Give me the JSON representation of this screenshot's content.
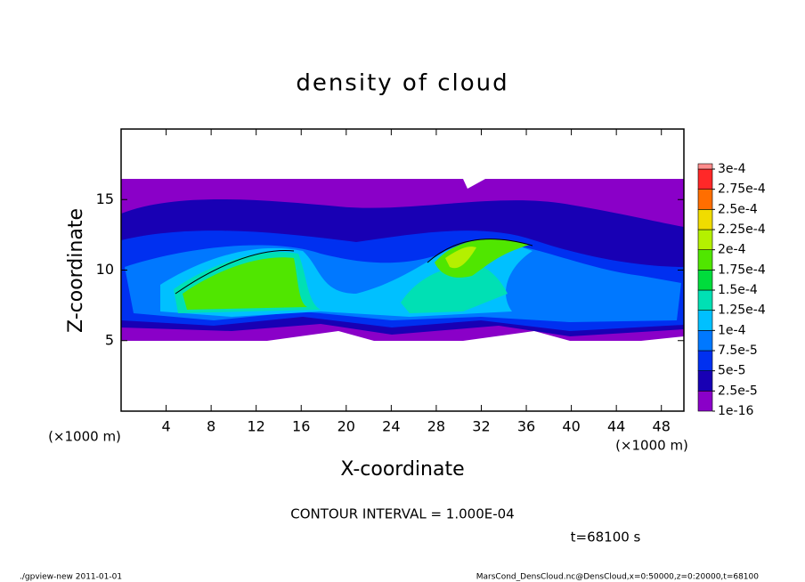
{
  "chart_data": {
    "type": "contour",
    "title": "density of cloud",
    "xlabel": "X-coordinate",
    "ylabel": "Z-coordinate",
    "xunit": "(×1000 m)",
    "yunit": "(×1000 m)",
    "xlim": [
      0,
      50
    ],
    "ylim": [
      0,
      20
    ],
    "xticks": [
      4,
      8,
      12,
      16,
      20,
      24,
      28,
      32,
      36,
      40,
      44,
      48
    ],
    "yticks": [
      5,
      10,
      15
    ],
    "levels": [
      {
        "value": 1e-16,
        "label": "1e-16"
      },
      {
        "value": 2.5e-05,
        "label": "2.5e-5"
      },
      {
        "value": 5e-05,
        "label": "5e-5"
      },
      {
        "value": 7.5e-05,
        "label": "7.5e-5"
      },
      {
        "value": 0.0001,
        "label": "1e-4"
      },
      {
        "value": 0.000125,
        "label": "1.25e-4"
      },
      {
        "value": 0.00015,
        "label": "1.5e-4"
      },
      {
        "value": 0.000175,
        "label": "1.75e-4"
      },
      {
        "value": 0.0002,
        "label": "2e-4"
      },
      {
        "value": 0.000225,
        "label": "2.25e-4"
      },
      {
        "value": 0.00025,
        "label": "2.5e-4"
      },
      {
        "value": 0.000275,
        "label": "2.75e-4"
      },
      {
        "value": 0.0003,
        "label": "3e-4"
      }
    ],
    "colors": [
      "#8a00c8",
      "#1800b4",
      "#0030f0",
      "#0078ff",
      "#00c0ff",
      "#00e0b4",
      "#00dc3c",
      "#50e600",
      "#b4f000",
      "#f0dc00",
      "#ff6e00",
      "#ff2828"
    ],
    "top_color": "#ff8c8c",
    "contour_note": "CONTOUR INTERVAL = 1.000E-04",
    "time_note": "t=68100 s",
    "footer_left": "./gpview-new   2011-01-01",
    "footer_right": "MarsCond_DensCloud.nc@DensCloud,x=0:50000,z=0:20000,t=68100"
  }
}
